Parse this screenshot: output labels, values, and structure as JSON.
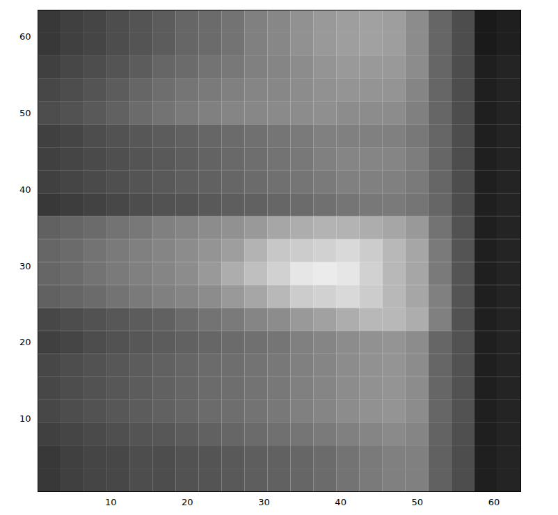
{
  "chart_data": {
    "type": "heatmap",
    "xlim": [
      0.5,
      63.5
    ],
    "ylim": [
      0.5,
      63.5
    ],
    "xticks": [
      10,
      20,
      30,
      40,
      50,
      60
    ],
    "yticks": [
      10,
      20,
      30,
      40,
      50,
      60
    ],
    "value_range": [
      0,
      1
    ],
    "x_edges": [
      0.5,
      3.5,
      6.5,
      9.5,
      12.5,
      15.5,
      18.5,
      21.5,
      24.5,
      27.5,
      30.5,
      33.5,
      36.5,
      39.5,
      42.5,
      45.5,
      48.5,
      51.5,
      54.5,
      57.5,
      60.5,
      63.5
    ],
    "y_edges": [
      0.5,
      3.5,
      6.5,
      9.5,
      12.5,
      15.5,
      18.5,
      21.5,
      24.5,
      27.5,
      30.5,
      33.5,
      36.5,
      39.5,
      42.5,
      45.5,
      48.5,
      51.5,
      54.5,
      57.5,
      60.5,
      63.5
    ],
    "cells": [
      [
        0.22,
        0.25,
        0.27,
        0.28,
        0.3,
        0.3,
        0.32,
        0.33,
        0.35,
        0.37,
        0.38,
        0.4,
        0.42,
        0.45,
        0.48,
        0.5,
        0.5,
        0.38,
        0.3,
        0.12,
        0.14
      ],
      [
        0.22,
        0.25,
        0.27,
        0.28,
        0.3,
        0.3,
        0.32,
        0.33,
        0.35,
        0.37,
        0.38,
        0.4,
        0.42,
        0.45,
        0.48,
        0.5,
        0.5,
        0.38,
        0.3,
        0.12,
        0.14
      ],
      [
        0.25,
        0.27,
        0.29,
        0.31,
        0.33,
        0.34,
        0.36,
        0.38,
        0.4,
        0.42,
        0.44,
        0.46,
        0.48,
        0.5,
        0.52,
        0.54,
        0.52,
        0.39,
        0.31,
        0.12,
        0.14
      ],
      [
        0.28,
        0.3,
        0.32,
        0.34,
        0.36,
        0.38,
        0.4,
        0.42,
        0.43,
        0.45,
        0.47,
        0.5,
        0.52,
        0.55,
        0.57,
        0.58,
        0.55,
        0.4,
        0.32,
        0.12,
        0.14
      ],
      [
        0.28,
        0.3,
        0.32,
        0.34,
        0.36,
        0.38,
        0.4,
        0.42,
        0.43,
        0.45,
        0.47,
        0.5,
        0.52,
        0.55,
        0.57,
        0.58,
        0.55,
        0.4,
        0.32,
        0.12,
        0.14
      ],
      [
        0.28,
        0.3,
        0.32,
        0.34,
        0.36,
        0.38,
        0.4,
        0.42,
        0.43,
        0.45,
        0.47,
        0.5,
        0.52,
        0.55,
        0.57,
        0.58,
        0.55,
        0.4,
        0.32,
        0.12,
        0.14
      ],
      [
        0.25,
        0.27,
        0.3,
        0.32,
        0.34,
        0.36,
        0.38,
        0.4,
        0.42,
        0.44,
        0.46,
        0.5,
        0.52,
        0.55,
        0.57,
        0.58,
        0.55,
        0.4,
        0.32,
        0.12,
        0.14
      ],
      [
        0.28,
        0.3,
        0.32,
        0.34,
        0.36,
        0.38,
        0.42,
        0.45,
        0.48,
        0.52,
        0.55,
        0.6,
        0.63,
        0.68,
        0.72,
        0.72,
        0.68,
        0.5,
        0.32,
        0.12,
        0.14
      ],
      [
        0.38,
        0.4,
        0.42,
        0.45,
        0.48,
        0.5,
        0.52,
        0.55,
        0.6,
        0.65,
        0.72,
        0.8,
        0.82,
        0.85,
        0.8,
        0.72,
        0.65,
        0.5,
        0.33,
        0.12,
        0.14
      ],
      [
        0.4,
        0.42,
        0.45,
        0.48,
        0.5,
        0.52,
        0.55,
        0.6,
        0.68,
        0.75,
        0.82,
        0.9,
        0.92,
        0.9,
        0.82,
        0.72,
        0.65,
        0.48,
        0.33,
        0.12,
        0.14
      ],
      [
        0.4,
        0.42,
        0.45,
        0.48,
        0.5,
        0.52,
        0.55,
        0.58,
        0.62,
        0.7,
        0.78,
        0.8,
        0.82,
        0.85,
        0.8,
        0.72,
        0.65,
        0.48,
        0.33,
        0.12,
        0.14
      ],
      [
        0.38,
        0.4,
        0.42,
        0.45,
        0.47,
        0.5,
        0.52,
        0.55,
        0.57,
        0.6,
        0.65,
        0.68,
        0.7,
        0.7,
        0.68,
        0.65,
        0.6,
        0.45,
        0.32,
        0.12,
        0.14
      ],
      [
        0.22,
        0.24,
        0.26,
        0.28,
        0.3,
        0.32,
        0.33,
        0.35,
        0.37,
        0.38,
        0.4,
        0.42,
        0.44,
        0.46,
        0.47,
        0.48,
        0.46,
        0.4,
        0.3,
        0.12,
        0.14
      ],
      [
        0.25,
        0.27,
        0.29,
        0.31,
        0.33,
        0.35,
        0.37,
        0.38,
        0.4,
        0.42,
        0.44,
        0.46,
        0.48,
        0.5,
        0.5,
        0.5,
        0.48,
        0.4,
        0.3,
        0.12,
        0.14
      ],
      [
        0.25,
        0.27,
        0.29,
        0.31,
        0.33,
        0.35,
        0.37,
        0.39,
        0.41,
        0.43,
        0.45,
        0.47,
        0.5,
        0.52,
        0.52,
        0.52,
        0.49,
        0.4,
        0.3,
        0.12,
        0.14
      ],
      [
        0.25,
        0.27,
        0.3,
        0.32,
        0.34,
        0.36,
        0.38,
        0.4,
        0.42,
        0.44,
        0.46,
        0.48,
        0.5,
        0.5,
        0.5,
        0.5,
        0.47,
        0.4,
        0.3,
        0.12,
        0.14
      ],
      [
        0.3,
        0.32,
        0.35,
        0.38,
        0.42,
        0.45,
        0.48,
        0.5,
        0.52,
        0.53,
        0.54,
        0.55,
        0.56,
        0.55,
        0.55,
        0.55,
        0.5,
        0.4,
        0.3,
        0.12,
        0.14
      ],
      [
        0.28,
        0.3,
        0.33,
        0.36,
        0.4,
        0.43,
        0.46,
        0.48,
        0.5,
        0.52,
        0.53,
        0.55,
        0.57,
        0.58,
        0.58,
        0.58,
        0.52,
        0.4,
        0.3,
        0.12,
        0.14
      ],
      [
        0.25,
        0.28,
        0.3,
        0.33,
        0.36,
        0.4,
        0.42,
        0.45,
        0.47,
        0.5,
        0.52,
        0.55,
        0.58,
        0.6,
        0.6,
        0.6,
        0.55,
        0.4,
        0.3,
        0.12,
        0.14
      ],
      [
        0.22,
        0.25,
        0.27,
        0.3,
        0.33,
        0.36,
        0.4,
        0.42,
        0.45,
        0.5,
        0.53,
        0.57,
        0.6,
        0.62,
        0.63,
        0.62,
        0.55,
        0.4,
        0.3,
        0.1,
        0.12
      ],
      [
        0.22,
        0.25,
        0.27,
        0.3,
        0.33,
        0.36,
        0.4,
        0.42,
        0.45,
        0.5,
        0.53,
        0.57,
        0.6,
        0.62,
        0.63,
        0.62,
        0.55,
        0.4,
        0.3,
        0.1,
        0.12
      ]
    ]
  }
}
